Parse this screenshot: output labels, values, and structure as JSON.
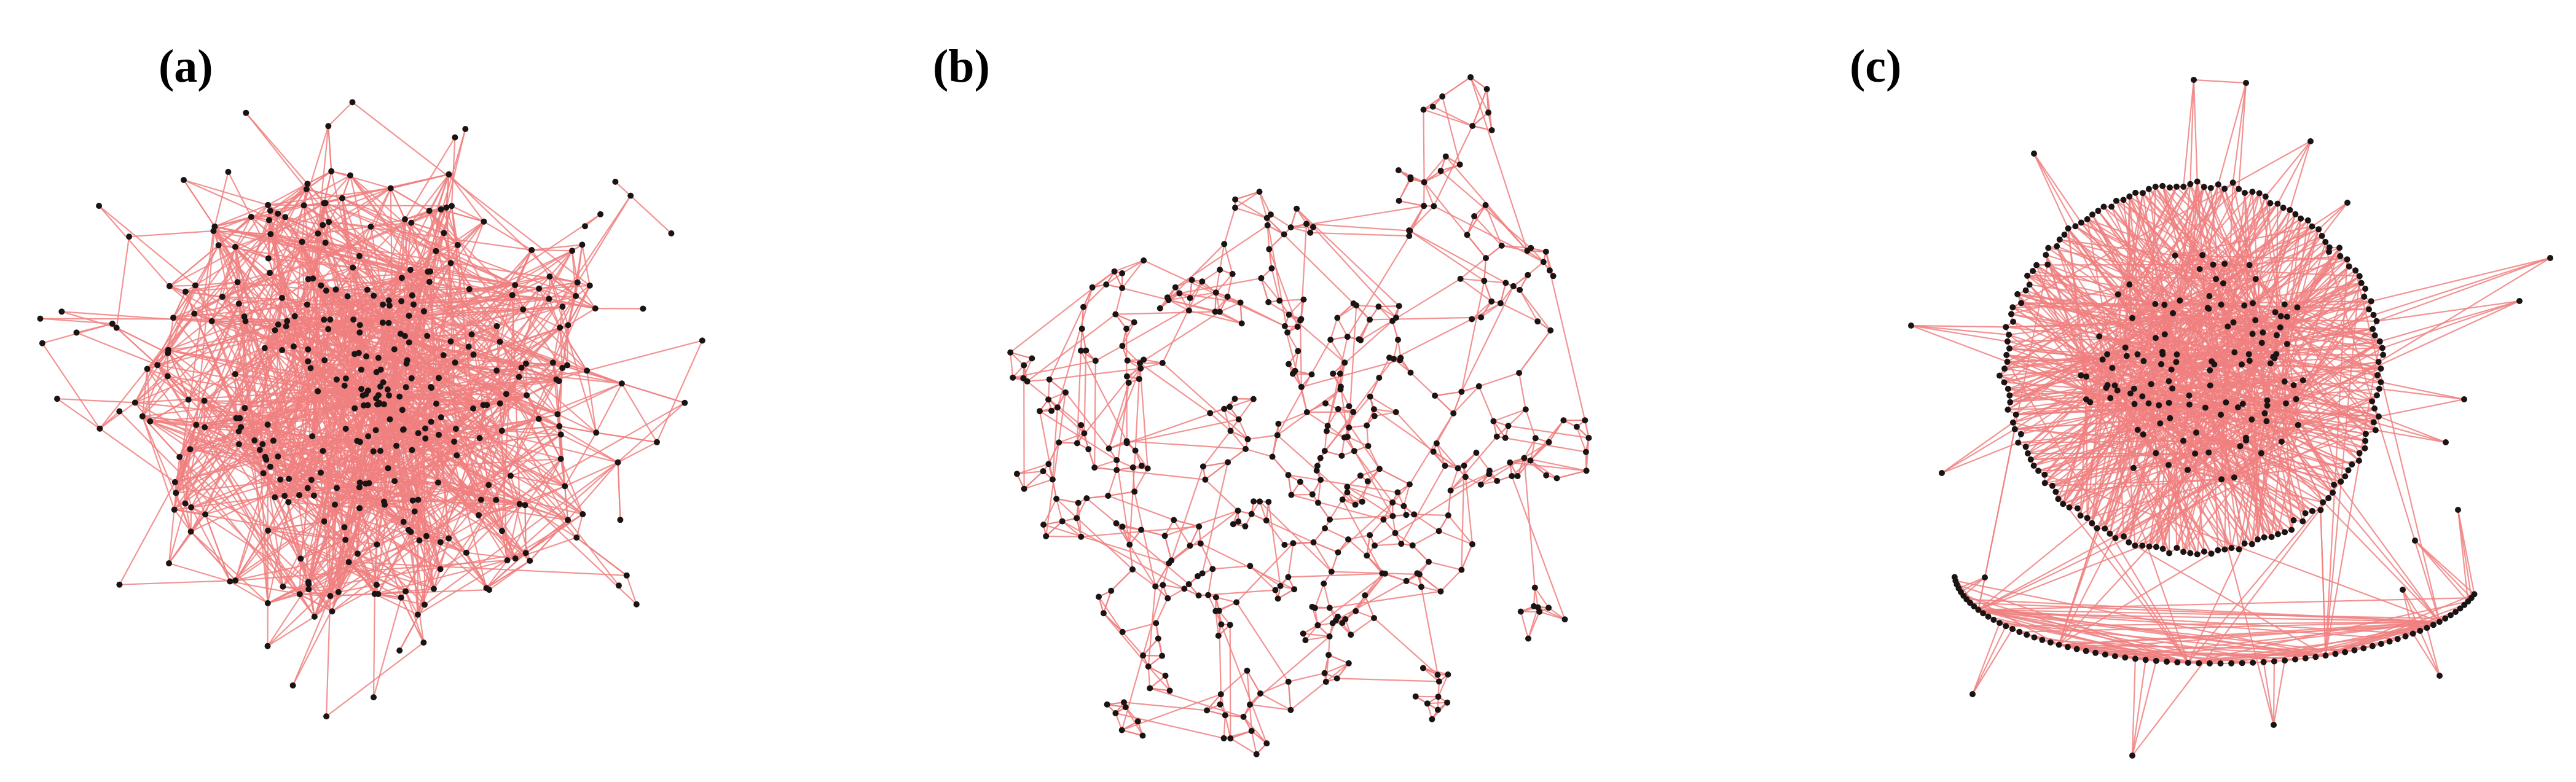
{
  "panels": [
    {
      "label": "(a)",
      "kind": "random-dense"
    },
    {
      "label": "(b)",
      "kind": "clustered-sparse"
    },
    {
      "label": "(c)",
      "kind": "hub-ring"
    }
  ],
  "colors": {
    "edge": "#f08080",
    "node": "#1a1414",
    "background": "#ffffff"
  }
}
